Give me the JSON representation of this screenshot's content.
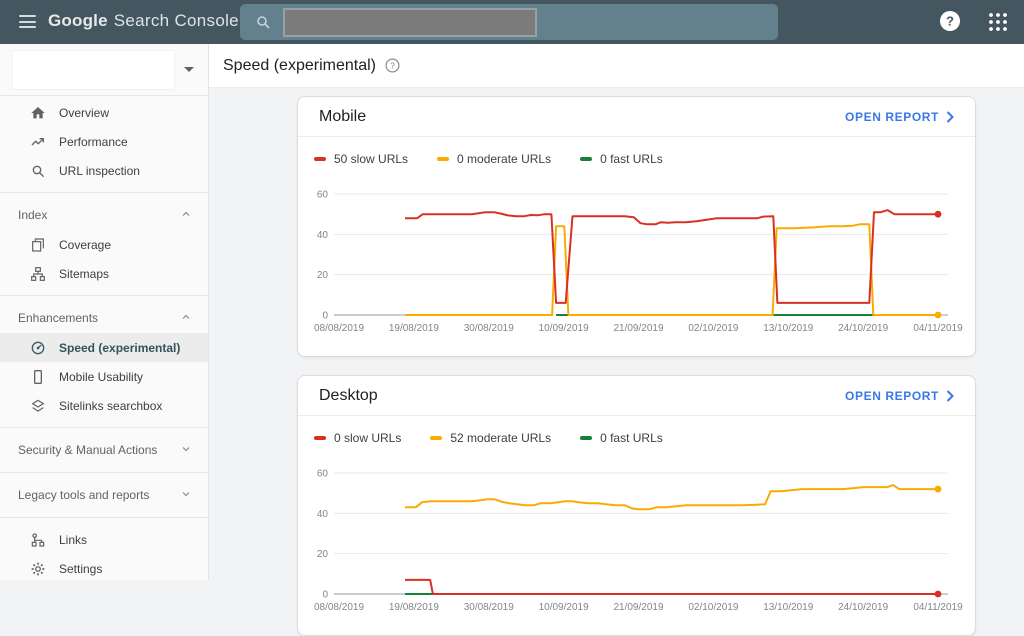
{
  "topbar": {
    "logo_primary": "Google",
    "logo_secondary": "Search Console",
    "search": {
      "value": "",
      "placeholder": ""
    }
  },
  "property_selector": {
    "value": ""
  },
  "page": {
    "title": "Speed (experimental)"
  },
  "sidebar": {
    "items": [
      {
        "type": "link",
        "icon": "home-icon",
        "label": "Overview",
        "selected": false
      },
      {
        "type": "link",
        "icon": "performance-icon",
        "label": "Performance",
        "selected": false
      },
      {
        "type": "link",
        "icon": "search-icon",
        "label": "URL inspection",
        "selected": false
      },
      {
        "type": "divider"
      },
      {
        "type": "section",
        "label": "Index",
        "chevron": "up"
      },
      {
        "type": "link",
        "icon": "coverage-icon",
        "label": "Coverage",
        "selected": false
      },
      {
        "type": "link",
        "icon": "sitemaps-icon",
        "label": "Sitemaps",
        "selected": false
      },
      {
        "type": "divider"
      },
      {
        "type": "section",
        "label": "Enhancements",
        "chevron": "up"
      },
      {
        "type": "link",
        "icon": "speed-icon",
        "label": "Speed (experimental)",
        "selected": true
      },
      {
        "type": "link",
        "icon": "mobile-usability-icon",
        "label": "Mobile Usability",
        "selected": false
      },
      {
        "type": "link",
        "icon": "sitelinks-icon",
        "label": "Sitelinks searchbox",
        "selected": false
      },
      {
        "type": "divider"
      },
      {
        "type": "section",
        "label": "Security & Manual Actions",
        "chevron": "down"
      },
      {
        "type": "divider"
      },
      {
        "type": "section",
        "label": "Legacy tools and reports",
        "chevron": "down"
      },
      {
        "type": "divider"
      },
      {
        "type": "link",
        "icon": "links-icon",
        "label": "Links",
        "selected": false
      },
      {
        "type": "link",
        "icon": "settings-icon",
        "label": "Settings",
        "selected": false
      }
    ]
  },
  "cards": [
    {
      "title": "Mobile",
      "open_report_label": "OPEN REPORT"
    },
    {
      "title": "Desktop",
      "open_report_label": "OPEN REPORT"
    }
  ],
  "colors": {
    "topbar_bg": "#44565f",
    "accent_blue": "#3b78e7",
    "slow_red": "#d93025",
    "moderate_orange": "#f9ab00",
    "fast_green": "#188038"
  },
  "chart_data": [
    {
      "type": "line",
      "title": "Mobile",
      "x_tick_labels": [
        "08/08/2019",
        "19/08/2019",
        "30/08/2019",
        "10/09/2019",
        "21/09/2019",
        "02/10/2019",
        "13/10/2019",
        "24/10/2019",
        "04/11/2019"
      ],
      "x_domain_days": [
        0,
        88
      ],
      "ylim": [
        0,
        60
      ],
      "y_ticks": [
        0,
        20,
        40,
        60
      ],
      "grid": true,
      "legend_position": "top",
      "data_start_day": 9.7,
      "series": [
        {
          "name": "50 slow URLs",
          "color": "#d93025",
          "end_dot": true,
          "points": [
            [
              9.7,
              48
            ],
            [
              11.5,
              48
            ],
            [
              12.3,
              50
            ],
            [
              16,
              50
            ],
            [
              19.5,
              50
            ],
            [
              20.5,
              50.5
            ],
            [
              21.5,
              51
            ],
            [
              22.8,
              51
            ],
            [
              23.8,
              50.3
            ],
            [
              24.8,
              49.4
            ],
            [
              26,
              49
            ],
            [
              27.2,
              49
            ],
            [
              28.2,
              49.6
            ],
            [
              29.3,
              49.5
            ],
            [
              30.2,
              50
            ],
            [
              31.2,
              50
            ],
            [
              31.9,
              6
            ],
            [
              33.3,
              6
            ],
            [
              34.3,
              49
            ],
            [
              38,
              49
            ],
            [
              42,
              49
            ],
            [
              43.3,
              48.5
            ],
            [
              44.3,
              45.5
            ],
            [
              45.3,
              45
            ],
            [
              46.5,
              45
            ],
            [
              47.3,
              46
            ],
            [
              48.3,
              45.7
            ],
            [
              49.5,
              46
            ],
            [
              51,
              46
            ],
            [
              52.5,
              46.5
            ],
            [
              53.5,
              47
            ],
            [
              54.5,
              47.5
            ],
            [
              55.5,
              48
            ],
            [
              58,
              48
            ],
            [
              61.5,
              48
            ],
            [
              62.3,
              48.8
            ],
            [
              63.8,
              49
            ],
            [
              64.4,
              6
            ],
            [
              68,
              6
            ],
            [
              72,
              6
            ],
            [
              77.9,
              6
            ],
            [
              78.6,
              51
            ],
            [
              79.6,
              51
            ],
            [
              80.6,
              52
            ],
            [
              81.6,
              50
            ],
            [
              84,
              50
            ],
            [
              88,
              50
            ]
          ]
        },
        {
          "name": "0 moderate URLs",
          "color": "#f9ab00",
          "end_dot": true,
          "points": [
            [
              9.7,
              0
            ],
            [
              31.3,
              0
            ],
            [
              31.9,
              44
            ],
            [
              33.1,
              44
            ],
            [
              33.7,
              0
            ],
            [
              63.7,
              0
            ],
            [
              64.3,
              43
            ],
            [
              67,
              43
            ],
            [
              70,
              43.5
            ],
            [
              72,
              44
            ],
            [
              74,
              44
            ],
            [
              75.5,
              44.3
            ],
            [
              76.5,
              45
            ],
            [
              77.9,
              45
            ],
            [
              78.5,
              0
            ],
            [
              88,
              0
            ]
          ]
        },
        {
          "name": "0 fast URLs",
          "color": "#188038",
          "end_dot": false,
          "segments": [
            [
              [
                31.9,
                0
              ],
              [
                33.9,
                0
              ]
            ],
            [
              [
                63.8,
                0
              ],
              [
                78.4,
                0
              ]
            ]
          ]
        }
      ]
    },
    {
      "type": "line",
      "title": "Desktop",
      "x_tick_labels": [
        "08/08/2019",
        "19/08/2019",
        "30/08/2019",
        "10/09/2019",
        "21/09/2019",
        "02/10/2019",
        "13/10/2019",
        "24/10/2019",
        "04/11/2019"
      ],
      "x_domain_days": [
        0,
        88
      ],
      "ylim": [
        0,
        60
      ],
      "y_ticks": [
        0,
        20,
        40,
        60
      ],
      "grid": true,
      "legend_position": "top",
      "data_start_day": 9.7,
      "series": [
        {
          "name": "0 slow URLs",
          "color": "#d93025",
          "end_dot": true,
          "points": [
            [
              9.7,
              7
            ],
            [
              13.4,
              7
            ],
            [
              13.8,
              0
            ],
            [
              88,
              0
            ]
          ]
        },
        {
          "name": "52 moderate URLs",
          "color": "#f9ab00",
          "end_dot": true,
          "points": [
            [
              9.7,
              43
            ],
            [
              11.3,
              43
            ],
            [
              12.2,
              45.5
            ],
            [
              13.5,
              46
            ],
            [
              19.5,
              46
            ],
            [
              20.8,
              46.5
            ],
            [
              21.8,
              47
            ],
            [
              22.8,
              47
            ],
            [
              23.8,
              45.8
            ],
            [
              25,
              45
            ],
            [
              26.2,
              44.5
            ],
            [
              27.2,
              44
            ],
            [
              28.6,
              44
            ],
            [
              29.6,
              45
            ],
            [
              31,
              45
            ],
            [
              32.2,
              45.5
            ],
            [
              33.2,
              46
            ],
            [
              34.2,
              46
            ],
            [
              35.2,
              45.5
            ],
            [
              36.6,
              45
            ],
            [
              38,
              45
            ],
            [
              39.2,
              44.5
            ],
            [
              40.6,
              44
            ],
            [
              42,
              44
            ],
            [
              43,
              42.5
            ],
            [
              44,
              42
            ],
            [
              45.6,
              42
            ],
            [
              46.6,
              43
            ],
            [
              48,
              43
            ],
            [
              49.6,
              43.5
            ],
            [
              51,
              44
            ],
            [
              59,
              44
            ],
            [
              61,
              44.2
            ],
            [
              62.6,
              44.5
            ],
            [
              63.4,
              51
            ],
            [
              65,
              51
            ],
            [
              66.6,
              51.5
            ],
            [
              68,
              52
            ],
            [
              74,
              52
            ],
            [
              75.6,
              52.5
            ],
            [
              77,
              53
            ],
            [
              80.6,
              53
            ],
            [
              81.4,
              54
            ],
            [
              82.3,
              52
            ],
            [
              88,
              52
            ]
          ]
        },
        {
          "name": "0 fast URLs",
          "color": "#188038",
          "end_dot": false,
          "points": [
            [
              9.7,
              0
            ],
            [
              88,
              0
            ]
          ]
        }
      ]
    }
  ]
}
